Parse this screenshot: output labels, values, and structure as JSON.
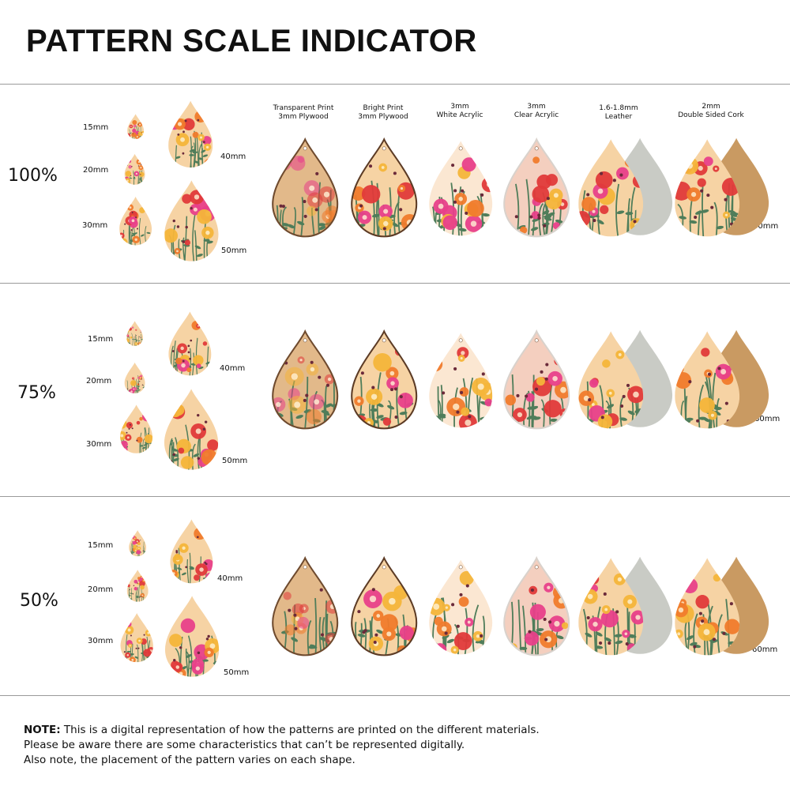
{
  "title": "PATTERN SCALE INDICATOR",
  "materials": [
    {
      "line1": "Transparent Print",
      "line2": "3mm Plywood"
    },
    {
      "line1": "Bright Print",
      "line2": "3mm Plywood"
    },
    {
      "line1": "3mm",
      "line2": "White Acrylic"
    },
    {
      "line1": "3mm",
      "line2": "Clear Acrylic"
    },
    {
      "line1": "1.6-1.8mm",
      "line2": "Leather"
    },
    {
      "line1": "2mm",
      "line2": "Double Sided Cork"
    }
  ],
  "rows": [
    {
      "scale": "100%",
      "s15": "15mm",
      "s20": "20mm",
      "s30": "30mm",
      "s40": "40mm",
      "s50": "50mm",
      "s60": "60mm"
    },
    {
      "scale": "75%",
      "s15": "15mm",
      "s20": "20mm",
      "s30": "30mm",
      "s40": "40mm",
      "s50": "50mm",
      "s60": "60mm"
    },
    {
      "scale": "50%",
      "s15": "15mm",
      "s20": "20mm",
      "s30": "30mm",
      "s40": "40mm",
      "s50": "50mm",
      "s60": "60mm"
    }
  ],
  "note": {
    "label": "NOTE:",
    "line1": " This is a digital representation of how the patterns are printed on the different materials.",
    "line2": "Please be aware there are some characteristics that can’t be represented digitally.",
    "line3": "Also note, the placement of the pattern varies on each shape."
  },
  "colors": {
    "plywood_bg": "#e2b98a",
    "bright_bg": "#f6d3a4",
    "white_bg": "#fbe7d2",
    "clear_bg": "#f4cfbf",
    "leather_back": "#c9cbc5",
    "cork_back": "#c99a62",
    "flower_pink": "#e8408a",
    "flower_orange": "#f07b2c",
    "flower_red": "#e03a3a",
    "flower_yellow": "#f4b53a",
    "stem_green": "#4f7d5a"
  }
}
